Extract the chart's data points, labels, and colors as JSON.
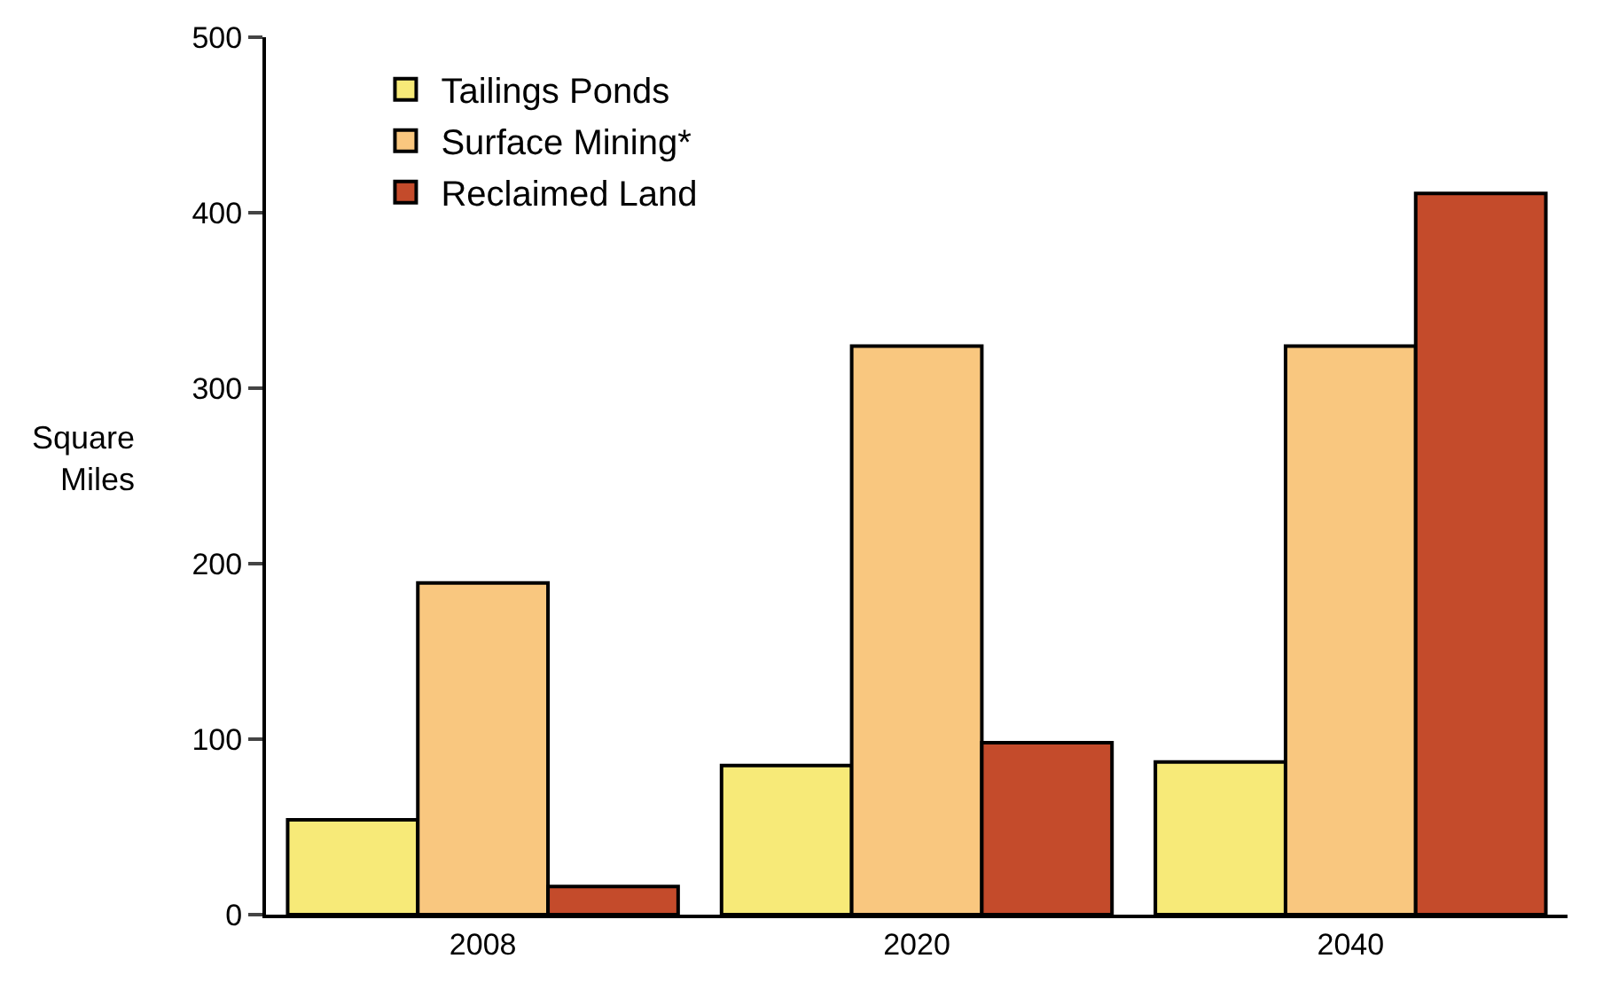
{
  "chart_data": {
    "type": "bar",
    "ylabel": "Square Miles",
    "categories": [
      "2008",
      "2020",
      "2040"
    ],
    "series": [
      {
        "name": "Tailings Ponds",
        "color": "#f7ea78",
        "values": [
          54,
          85,
          87
        ]
      },
      {
        "name": "Surface Mining*",
        "color": "#f9c77f",
        "values": [
          189,
          324,
          324
        ]
      },
      {
        "name": "Reclaimed Land",
        "color": "#c44b2b",
        "values": [
          16,
          98,
          411
        ]
      }
    ],
    "ylim": [
      0,
      500
    ],
    "yticks": [
      0,
      100,
      200,
      300,
      400,
      500
    ],
    "legend": "top left"
  }
}
